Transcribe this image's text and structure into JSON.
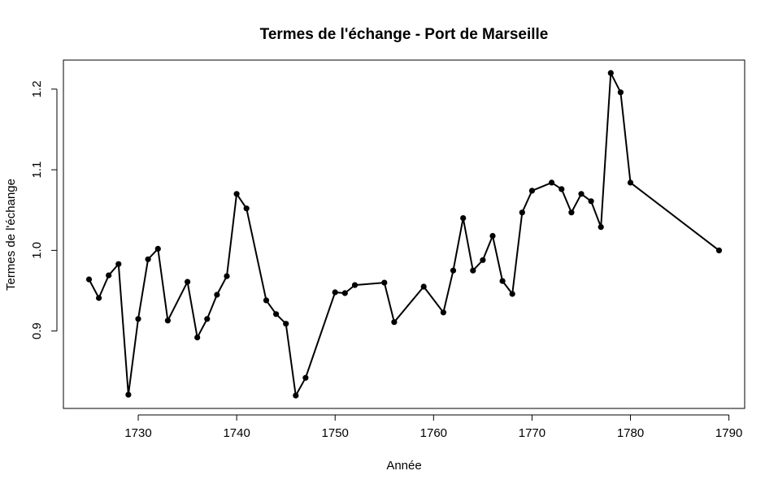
{
  "chart_data": {
    "type": "line",
    "title": "Termes de l'échange - Port de Marseille",
    "xlabel": "Année",
    "ylabel": "Termes de l'échange",
    "xlim": [
      1722.4,
      1791.6
    ],
    "ylim": [
      0.804,
      1.236
    ],
    "x_ticks": [
      1730,
      1740,
      1750,
      1760,
      1770,
      1780,
      1790
    ],
    "x_tick_labels": [
      "1730",
      "1740",
      "1750",
      "1760",
      "1770",
      "1780",
      "1790"
    ],
    "y_ticks": [
      0.9,
      1.0,
      1.1,
      1.2
    ],
    "y_tick_labels": [
      "0.9",
      "1.0",
      "1.1",
      "1.2"
    ],
    "grid": false,
    "legend": "none",
    "color": "#000000",
    "marker": "filled-circle",
    "series": [
      {
        "x": [
          1725,
          1726,
          1727,
          1728,
          1729,
          1730,
          1731,
          1732,
          1733,
          1735,
          1736,
          1737,
          1738,
          1739,
          1740,
          1741,
          1743,
          1744,
          1745,
          1746,
          1747,
          1750,
          1751,
          1752,
          1755,
          1756,
          1759,
          1761,
          1762,
          1763,
          1764,
          1765,
          1766,
          1767,
          1768,
          1769,
          1770,
          1772,
          1773,
          1774,
          1775,
          1776,
          1777,
          1778,
          1779,
          1780,
          1789
        ],
        "values": [
          0.964,
          0.941,
          0.969,
          0.983,
          0.821,
          0.915,
          0.989,
          1.002,
          0.913,
          0.961,
          0.892,
          0.915,
          0.945,
          0.968,
          1.07,
          1.052,
          0.938,
          0.921,
          0.909,
          0.82,
          0.842,
          0.948,
          0.947,
          0.957,
          0.96,
          0.911,
          0.955,
          0.923,
          0.975,
          1.04,
          0.975,
          0.988,
          1.018,
          0.962,
          0.946,
          1.047,
          1.074,
          1.084,
          1.076,
          1.047,
          1.07,
          1.061,
          1.029,
          1.22,
          1.196,
          1.084,
          1.0
        ]
      }
    ]
  }
}
